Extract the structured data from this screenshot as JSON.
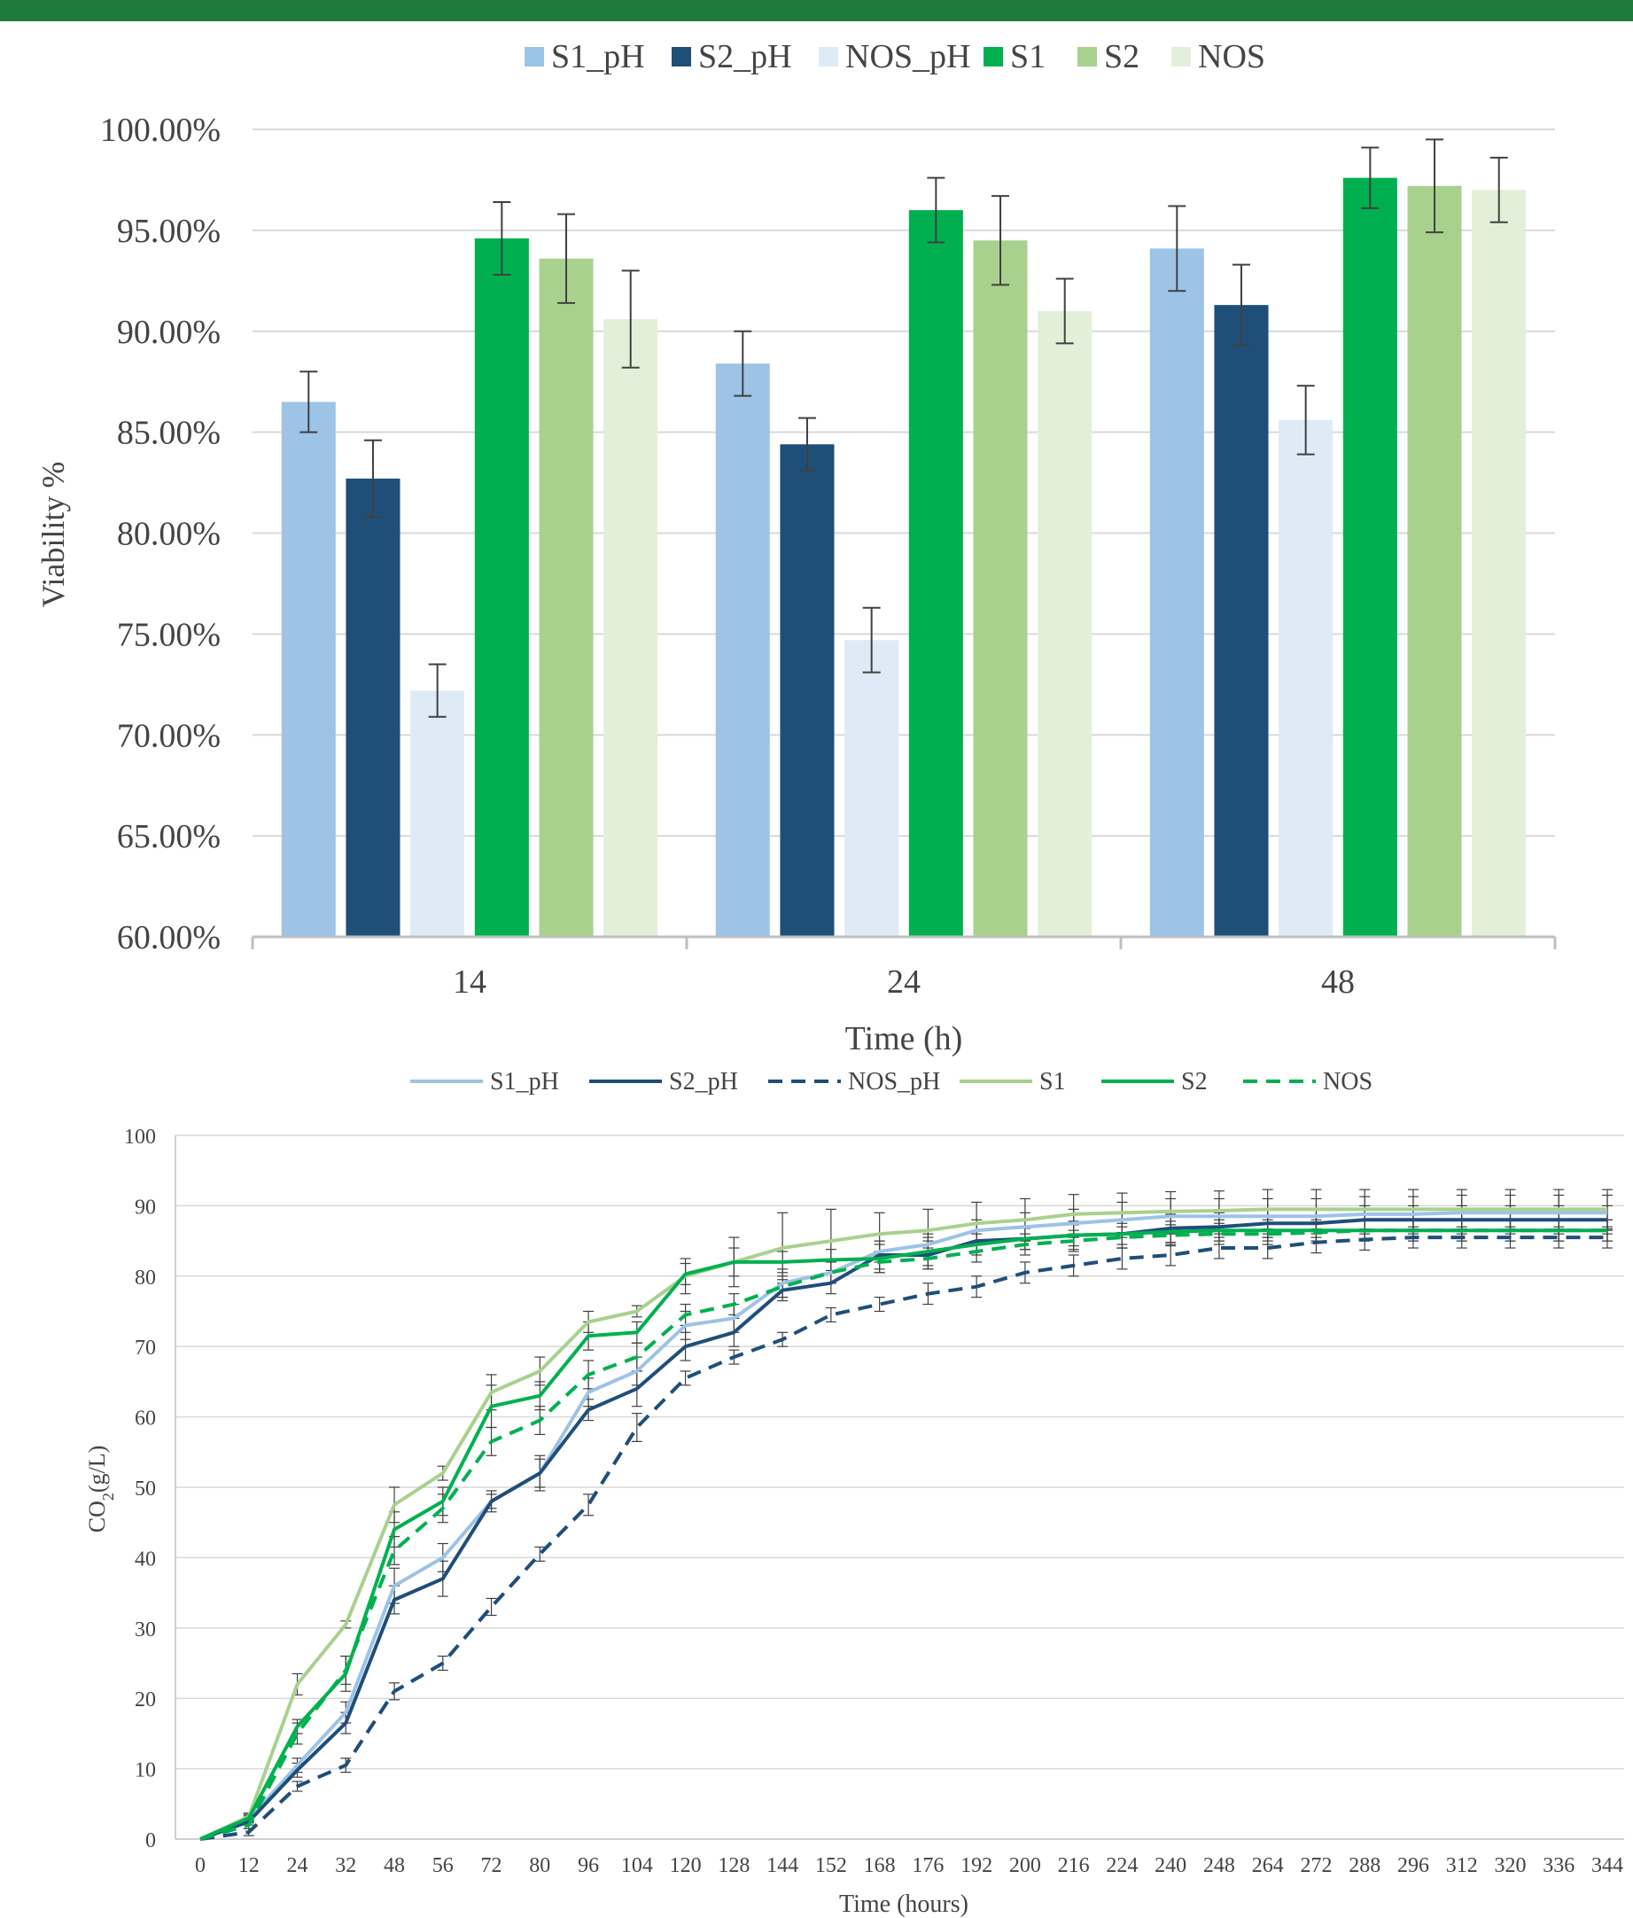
{
  "colors": {
    "top_rule": "#1f7a3a",
    "S1_pH": "#9dc3e6",
    "S2_pH": "#1f4e79",
    "NOS_pH": "#deebf7",
    "S1_bar": "#00b050",
    "S2_bar": "#a9d18e",
    "NOS_bar": "#e2f0d9",
    "S1_line": "#a9d18e",
    "S2_line": "#00b050",
    "NOS_line": "#00b050",
    "grid": "#d9d9d9",
    "error": "#404040"
  },
  "chart_data": [
    {
      "type": "bar",
      "title": "",
      "xlabel": "Time (h)",
      "ylabel": "Viability  %",
      "ylim": [
        0.6,
        1.0
      ],
      "yticks": [
        "60.00%",
        "65.00%",
        "70.00%",
        "75.00%",
        "80.00%",
        "85.00%",
        "90.00%",
        "95.00%",
        "100.00%"
      ],
      "categories": [
        "14",
        "24",
        "48"
      ],
      "legend_position": "top",
      "grid": "horizontal",
      "series": [
        {
          "name": "S1_pH",
          "color": "#9dc3e6",
          "values": [
            0.865,
            0.884,
            0.941
          ],
          "errors": [
            0.015,
            0.016,
            0.021
          ]
        },
        {
          "name": "S2_pH",
          "color": "#1f4e79",
          "values": [
            0.827,
            0.844,
            0.913
          ],
          "errors": [
            0.019,
            0.013,
            0.02
          ]
        },
        {
          "name": "NOS_pH",
          "color": "#deebf7",
          "values": [
            0.722,
            0.747,
            0.856
          ],
          "errors": [
            0.013,
            0.016,
            0.017
          ]
        },
        {
          "name": "S1",
          "color": "#00b050",
          "values": [
            0.946,
            0.96,
            0.976
          ],
          "errors": [
            0.018,
            0.016,
            0.015
          ]
        },
        {
          "name": "S2",
          "color": "#a9d18e",
          "values": [
            0.936,
            0.945,
            0.972
          ],
          "errors": [
            0.022,
            0.022,
            0.023
          ]
        },
        {
          "name": "NOS",
          "color": "#e2f0d9",
          "values": [
            0.906,
            0.91,
            0.97
          ],
          "errors": [
            0.024,
            0.016,
            0.016
          ]
        }
      ]
    },
    {
      "type": "line",
      "title": "",
      "xlabel": "Time (hours)",
      "ylabel_main": "CO",
      "ylabel_sub": "2",
      "ylabel_tail": "(g/L)",
      "ylim": [
        0,
        100
      ],
      "yticks": [
        "0",
        "10",
        "20",
        "30",
        "40",
        "50",
        "60",
        "70",
        "80",
        "90",
        "100"
      ],
      "x": [
        0,
        12,
        24,
        32,
        48,
        56,
        72,
        80,
        96,
        104,
        120,
        128,
        144,
        152,
        168,
        176,
        192,
        200,
        216,
        224,
        240,
        248,
        264,
        272,
        288,
        296,
        312,
        320,
        336,
        344
      ],
      "legend_position": "top",
      "grid": "horizontal",
      "series": [
        {
          "name": "S1_pH",
          "color": "#9dc3e6",
          "dash": false,
          "values": [
            0,
            2.8,
            10.5,
            18,
            36,
            40,
            48,
            52,
            63.5,
            66.5,
            73,
            74,
            79,
            80.5,
            83.5,
            84.5,
            86.5,
            87,
            87.5,
            88,
            88.5,
            88.5,
            88.5,
            88.5,
            88.8,
            88.8,
            89,
            89,
            89,
            89
          ],
          "errors": [
            0,
            0.5,
            1,
            1.5,
            2.5,
            2,
            1,
            2,
            2,
            2,
            2,
            2,
            2,
            1.5,
            1.5,
            1.5,
            1.5,
            2,
            2,
            2.5,
            2.5,
            2.5,
            2.5,
            2.5,
            2.5,
            2.5,
            2.5,
            2.5,
            2.5,
            2.5
          ]
        },
        {
          "name": "S2_pH",
          "color": "#1f4e79",
          "dash": false,
          "values": [
            0,
            2.5,
            9.8,
            16.5,
            34,
            37,
            48,
            52,
            61,
            64,
            70,
            72,
            78,
            79,
            83,
            83,
            85,
            85.3,
            85.8,
            86,
            86.8,
            87,
            87.5,
            87.5,
            88,
            88,
            88,
            88,
            88,
            88
          ],
          "errors": [
            0,
            0.5,
            1,
            1.5,
            2,
            2.5,
            1.5,
            2.5,
            1.5,
            2.5,
            2,
            2,
            1.5,
            1.5,
            2,
            2,
            1.5,
            1.5,
            2,
            2,
            2,
            2,
            2,
            2,
            2,
            2,
            2,
            2,
            2,
            2
          ]
        },
        {
          "name": "NOS_pH",
          "color": "#1f4e79",
          "dash": true,
          "values": [
            0,
            1,
            7.5,
            10.5,
            21,
            25,
            33,
            40.5,
            47.5,
            58.5,
            65.5,
            68.5,
            71,
            74.5,
            76,
            77.5,
            78.5,
            80.5,
            81.5,
            82.5,
            83,
            84,
            84,
            84.8,
            85.2,
            85.5,
            85.5,
            85.5,
            85.5,
            85.5
          ],
          "errors": [
            0,
            0.5,
            0.7,
            1,
            1.2,
            1,
            1.2,
            1,
            1.5,
            2,
            1,
            1,
            1,
            1,
            1,
            1.5,
            1.5,
            1.5,
            1.5,
            1.5,
            1.5,
            1.5,
            1.5,
            1.5,
            1.5,
            1.5,
            1.5,
            1.5,
            1.5,
            1.5
          ]
        },
        {
          "name": "S1",
          "color": "#a9d18e",
          "dash": false,
          "values": [
            0,
            3.2,
            22,
            30.5,
            47.5,
            52,
            63.5,
            66.5,
            73.5,
            75,
            80,
            82,
            84,
            85,
            86,
            86.5,
            87.5,
            88,
            88.8,
            89,
            89.2,
            89.3,
            89.5,
            89.5,
            89.5,
            89.5,
            89.5,
            89.5,
            89.5,
            89.5
          ],
          "errors": [
            0,
            0.5,
            1.5,
            0.5,
            2.5,
            1,
            2.5,
            2,
            1.5,
            0.8,
            2.5,
            3.5,
            5,
            4.5,
            3,
            3,
            3,
            3,
            2.8,
            2.8,
            2.8,
            2.8,
            2.8,
            2.8,
            2.8,
            2.8,
            2.8,
            2.8,
            2.8,
            2.8
          ]
        },
        {
          "name": "S2",
          "color": "#00b050",
          "dash": false,
          "values": [
            0,
            3,
            16,
            23.5,
            44,
            48,
            61.5,
            63,
            71.5,
            72,
            80.3,
            82,
            82,
            82.3,
            82.5,
            83.5,
            84.5,
            85.3,
            85.8,
            86,
            86.3,
            86.5,
            86.5,
            86.5,
            86.5,
            86.5,
            86.5,
            86.5,
            86.5,
            86.5
          ],
          "errors": [
            0,
            0.5,
            1,
            2.5,
            2.5,
            2,
            3,
            2,
            2,
            1.5,
            1.5,
            2,
            1.5,
            1.5,
            2,
            2,
            1.5,
            1.5,
            1.5,
            1.5,
            1.5,
            1.5,
            1.5,
            1.5,
            1.5,
            1.5,
            1.5,
            1.5,
            1.5,
            1.5
          ]
        },
        {
          "name": "NOS",
          "color": "#00b050",
          "dash": true,
          "values": [
            0,
            2,
            15,
            24,
            41,
            47,
            56.5,
            59.5,
            66,
            68.5,
            74.5,
            76,
            78.5,
            80.5,
            82,
            82.5,
            83.5,
            84.5,
            85,
            85.5,
            85.8,
            86,
            86,
            86.2,
            86.5,
            86.5,
            86.5,
            86.5,
            86.5,
            86.5
          ],
          "errors": [
            0,
            0.5,
            1.5,
            2,
            2,
            2,
            2,
            2,
            2,
            2,
            1.5,
            1.5,
            1.5,
            1.5,
            1.5,
            1.5,
            1.5,
            1.5,
            1.5,
            1.5,
            1.5,
            1.5,
            1.5,
            1.5,
            1.5,
            1.5,
            1.5,
            1.5,
            1.5,
            1.5
          ]
        }
      ]
    }
  ]
}
